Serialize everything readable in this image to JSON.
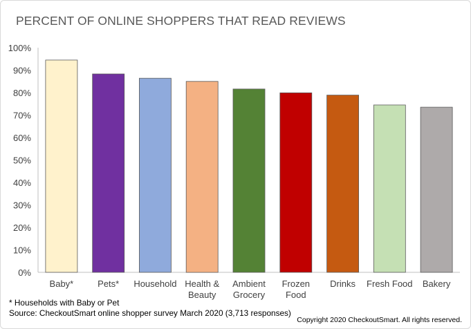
{
  "title": "PERCENT OF ONLINE SHOPPERS THAT READ REVIEWS",
  "footnote": "* Households with Baby or Pet",
  "source": "Source: CheckoutSmart online shopper survey March 2020 (3,713 responses)",
  "copyright": "Copyright 2020 CheckoutSmart. All rights reserved.",
  "chart_data": {
    "type": "bar",
    "title": "PERCENT OF ONLINE SHOPPERS THAT READ REVIEWS",
    "xlabel": "",
    "ylabel": "",
    "ylim": [
      0,
      100
    ],
    "yticks": [
      "0%",
      "10%",
      "20%",
      "30%",
      "40%",
      "50%",
      "60%",
      "70%",
      "80%",
      "90%",
      "100%"
    ],
    "grid": false,
    "legend": "none",
    "categories": [
      "Baby*",
      "Pets*",
      "Household",
      "Health & Beauty",
      "Ambient Grocery",
      "Frozen Food",
      "Drinks",
      "Fresh Food",
      "Bakery"
    ],
    "category_lines": [
      [
        "Baby*"
      ],
      [
        "Pets*"
      ],
      [
        "Household"
      ],
      [
        "Health &",
        "Beauty"
      ],
      [
        "Ambient",
        "Grocery"
      ],
      [
        "Frozen",
        "Food"
      ],
      [
        "Drinks"
      ],
      [
        "Fresh Food"
      ],
      [
        "Bakery"
      ]
    ],
    "values": [
      94.5,
      88.3,
      86.4,
      85.0,
      81.6,
      79.9,
      78.9,
      74.5,
      73.5
    ],
    "colors": [
      "#fff2cc",
      "#7030a0",
      "#8faadc",
      "#f4b183",
      "#548235",
      "#c00000",
      "#c55a11",
      "#c5e0b4",
      "#aeaaaa"
    ],
    "bar_outline": "#595959",
    "axis_color": "#bfbfbf"
  }
}
